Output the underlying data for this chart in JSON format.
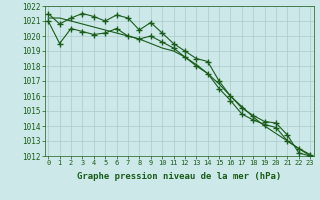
{
  "x": [
    0,
    1,
    2,
    3,
    4,
    5,
    6,
    7,
    8,
    9,
    10,
    11,
    12,
    13,
    14,
    15,
    16,
    17,
    18,
    19,
    20,
    21,
    22,
    23
  ],
  "series1": [
    1021.5,
    1020.8,
    1021.2,
    1021.5,
    1021.3,
    1021.0,
    1021.4,
    1021.2,
    1020.4,
    1020.9,
    1020.2,
    1019.5,
    1019.0,
    1018.5,
    1018.3,
    1017.0,
    1016.0,
    1015.2,
    1014.7,
    1014.3,
    1014.2,
    1013.4,
    1012.2,
    1012.0
  ],
  "series2": [
    1021.0,
    1019.5,
    1020.5,
    1020.3,
    1020.1,
    1020.2,
    1020.5,
    1020.0,
    1019.8,
    1020.0,
    1019.6,
    1019.2,
    1018.6,
    1018.0,
    1017.5,
    1016.5,
    1015.7,
    1014.8,
    1014.4,
    1014.1,
    1013.9,
    1013.0,
    1012.5,
    1012.1
  ],
  "series3": [
    1021.2,
    1021.2,
    1021.0,
    1020.8,
    1020.6,
    1020.4,
    1020.2,
    1020.0,
    1019.8,
    1019.5,
    1019.2,
    1019.0,
    1018.6,
    1018.1,
    1017.5,
    1016.8,
    1016.0,
    1015.3,
    1014.6,
    1014.0,
    1013.5,
    1013.0,
    1012.5,
    1012.0
  ],
  "ylim": [
    1012,
    1022
  ],
  "yticks": [
    1012,
    1013,
    1014,
    1015,
    1016,
    1017,
    1018,
    1019,
    1020,
    1021,
    1022
  ],
  "xticks": [
    0,
    1,
    2,
    3,
    4,
    5,
    6,
    7,
    8,
    9,
    10,
    11,
    12,
    13,
    14,
    15,
    16,
    17,
    18,
    19,
    20,
    21,
    22,
    23
  ],
  "xlabel": "Graphe pression niveau de la mer (hPa)",
  "line_color": "#1a5c1a",
  "bg_color": "#cce8e8",
  "grid_color": "#aacccc",
  "marker": "+",
  "marker_size": 5,
  "linewidth": 0.8,
  "xlabel_fontsize": 6.5,
  "ytick_fontsize": 5.5,
  "xtick_fontsize": 5.0,
  "fig_width": 3.2,
  "fig_height": 2.0,
  "fig_dpi": 100
}
